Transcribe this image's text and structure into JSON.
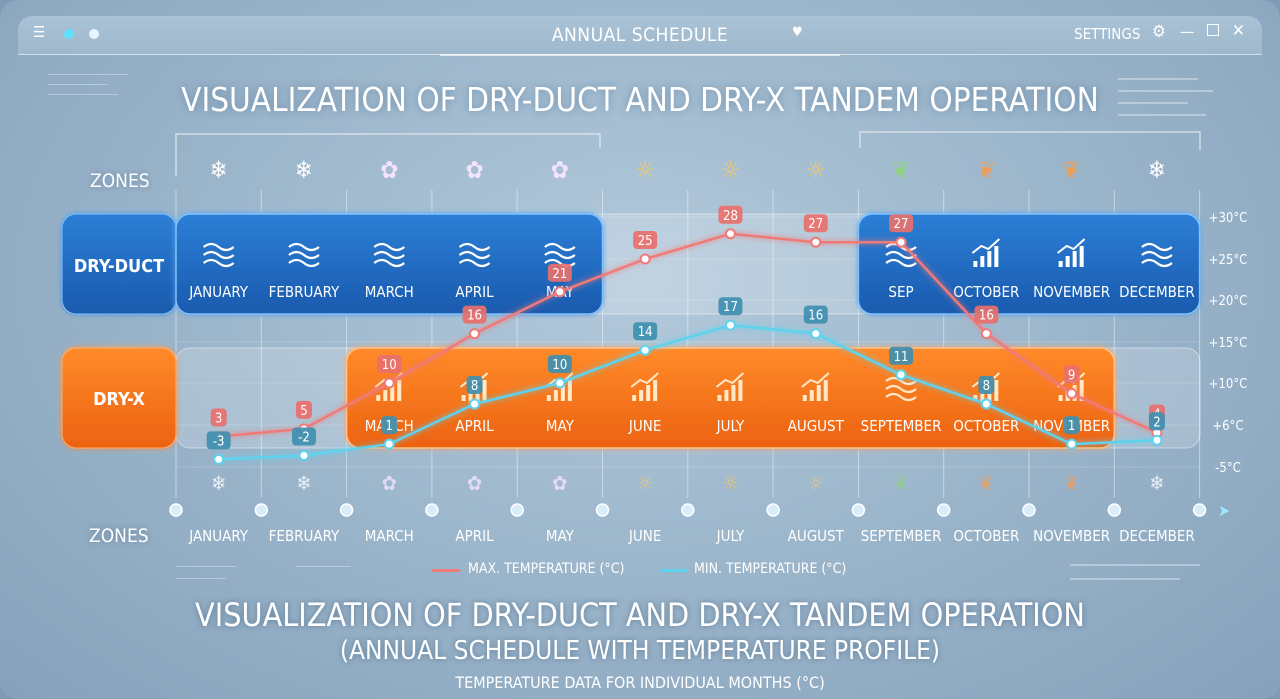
{
  "window": {
    "title": "ANNUAL SCHEDULE",
    "settings_label": "SETTINGS",
    "dot_colors": [
      "#5ee0ff",
      "#e8f4ff"
    ]
  },
  "headline": "VISUALIZATION OF DRY-DUCT AND DRY-X TANDEM OPERATION",
  "zones_label_top": "ZONES",
  "zones_label_bottom": "ZONES",
  "footer": {
    "line1": "VISUALIZATION OF DRY-DUCT AND DRY-X TANDEM OPERATION",
    "line2": "(ANNUAL SCHEDULE WITH TEMPERATURE PROFILE)",
    "line3": "TEMPERATURE DATA FOR INDIVIDUAL MONTHS (°C)"
  },
  "legend": {
    "max_label": "MAX. TEMPERATURE (°C)",
    "min_label": "MIN. TEMPERATURE (°C)"
  },
  "chart_data": {
    "type": "line",
    "categories": [
      "JANUARY",
      "FEBRUARY",
      "MARCH",
      "APRIL",
      "MAY",
      "JUNE",
      "JULY",
      "AUGUST",
      "SEPTEMBER",
      "OCTOBER",
      "NOVEMBER",
      "DECEMBER"
    ],
    "series": [
      {
        "name": "MAX. TEMPERATURE (°C)",
        "color": "#f07a78",
        "values": [
          3,
          5,
          10,
          16,
          21,
          25,
          28,
          27,
          27,
          16,
          9,
          4
        ]
      },
      {
        "name": "MIN. TEMPERATURE (°C)",
        "color": "#5fd2ee",
        "values": [
          -3,
          -2,
          1,
          8,
          10,
          14,
          17,
          16,
          11,
          8,
          1,
          2
        ]
      }
    ],
    "y_tick_labels": [
      "+30°C",
      "+25°C",
      "+20°C",
      "+15°C",
      "+10°C",
      "+6°C",
      "-5°C"
    ],
    "season_icons": [
      "snowflake-icon",
      "snowflake-icon",
      "flower-icon",
      "flower-icon",
      "flower-icon",
      "sun-icon",
      "sun-icon",
      "sun-icon",
      "leaf-icon",
      "leaf-icon",
      "leaf-icon",
      "snowflake-icon"
    ],
    "dry_duct": {
      "label": "DRY-DUCT",
      "color": "#1d68c2",
      "cells": [
        {
          "label": "JANUARY",
          "icon": "waves-icon"
        },
        {
          "label": "FEBRUARY",
          "icon": "waves-icon"
        },
        {
          "label": "MARCH",
          "icon": "waves-icon"
        },
        {
          "label": "APRIL",
          "icon": "waves-icon"
        },
        {
          "label": "MAY",
          "icon": "waves-icon"
        },
        null,
        null,
        null,
        {
          "label": "SEP",
          "icon": "waves-icon"
        },
        {
          "label": "OCTOBER",
          "icon": "rising-chart-icon"
        },
        {
          "label": "NOVEMBER",
          "icon": "rising-chart-icon"
        },
        {
          "label": "DECEMBER",
          "icon": "waves-icon"
        }
      ]
    },
    "dry_x": {
      "label": "DRY-X",
      "color": "#f07314",
      "cells": [
        null,
        null,
        {
          "label": "MARCH",
          "icon": "rising-chart-icon"
        },
        {
          "label": "APRIL",
          "icon": "rising-chart-icon"
        },
        {
          "label": "MAY",
          "icon": "rising-chart-icon"
        },
        {
          "label": "JUNE",
          "icon": "rising-chart-icon"
        },
        {
          "label": "JULY",
          "icon": "rising-chart-icon"
        },
        {
          "label": "AUGUST",
          "icon": "rising-chart-icon"
        },
        {
          "label": "SEPTEMBER",
          "icon": "waves-icon"
        },
        {
          "label": "OCTOBER",
          "icon": "rising-chart-icon"
        },
        {
          "label": "NOVEMBER",
          "icon": "rising-chart-icon"
        },
        null
      ]
    }
  }
}
